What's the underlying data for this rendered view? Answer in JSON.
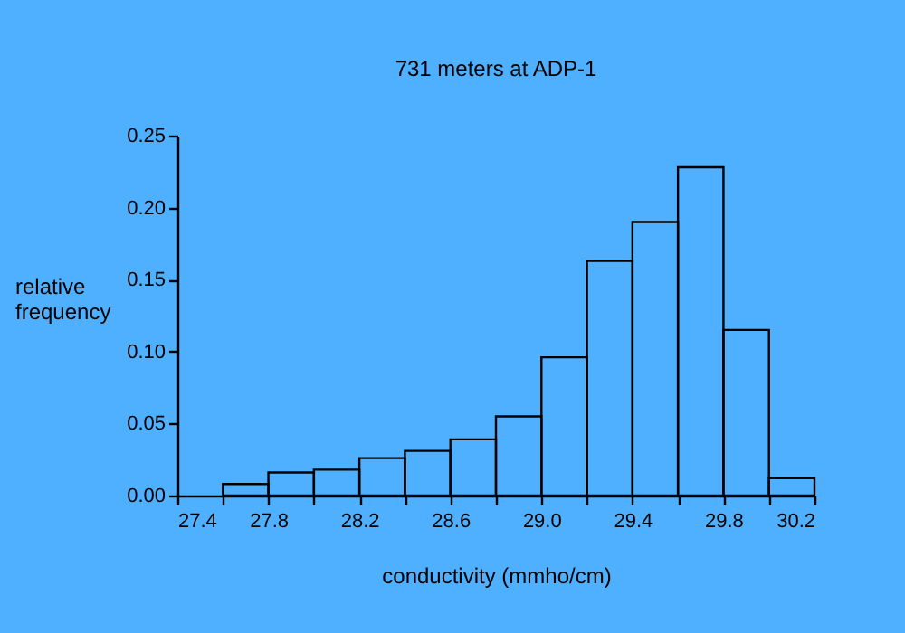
{
  "chart_data": {
    "type": "histogram",
    "title": "731 meters at ADP-1",
    "xlabel": "conductivity (mmho/cm)",
    "ylabel": "relative frequency",
    "color": "#000000",
    "bins": [
      27.6,
      27.8,
      28.0,
      28.2,
      28.4,
      28.6,
      28.8,
      29.0,
      29.2,
      29.4,
      29.6,
      29.8,
      30.0,
      30.2
    ],
    "values": [
      0.008,
      0.016,
      0.018,
      0.026,
      0.031,
      0.039,
      0.055,
      0.096,
      0.163,
      0.19,
      0.228,
      0.115,
      0.012
    ],
    "xlim": [
      27.4,
      30.2
    ],
    "xticks": [
      {
        "value": 27.4,
        "label": "27.4"
      },
      {
        "value": 27.6,
        "label": null
      },
      {
        "value": 27.8,
        "label": "27.8"
      },
      {
        "value": 28.0,
        "label": null
      },
      {
        "value": 28.2,
        "label": "28.2"
      },
      {
        "value": 28.4,
        "label": null
      },
      {
        "value": 28.6,
        "label": "28.6"
      },
      {
        "value": 28.8,
        "label": null
      },
      {
        "value": 29.0,
        "label": "29.0"
      },
      {
        "value": 29.2,
        "label": null
      },
      {
        "value": 29.4,
        "label": "29.4"
      },
      {
        "value": 29.6,
        "label": null
      },
      {
        "value": 29.8,
        "label": "29.8"
      },
      {
        "value": 30.0,
        "label": null
      },
      {
        "value": 30.2,
        "label": "30.2"
      }
    ],
    "ylim": [
      0,
      0.25
    ],
    "yticks": [
      {
        "value": 0,
        "label": "0.00"
      },
      {
        "value": 0.05,
        "label": "0.05"
      },
      {
        "value": 0.1,
        "label": "0.10"
      },
      {
        "value": 0.15,
        "label": "0.15"
      },
      {
        "value": 0.2,
        "label": "0.20"
      },
      {
        "value": 0.25,
        "label": "0.25"
      }
    ],
    "grid": false
  }
}
